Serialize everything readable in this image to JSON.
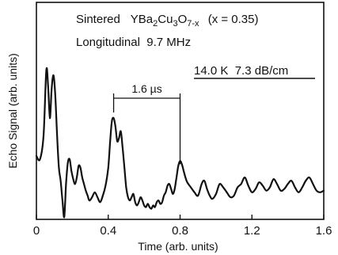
{
  "chart_data": {
    "type": "line",
    "xlabel": "Time (arb. units)",
    "ylabel": "Echo Signal (arb. units)",
    "xlim": [
      0,
      1.6
    ],
    "ylim": [
      0,
      1
    ],
    "x_ticks": [
      "0",
      "0.4",
      "0.8",
      "1.2",
      "1.6"
    ],
    "grid": false,
    "legend": "none",
    "annotations": {
      "sample_prefix": "Sintered",
      "sample_formula_main": "YBa",
      "sub_1": "2",
      "formula_mid_1": "Cu",
      "sub_2": "3",
      "formula_mid_2": "O",
      "sub_3": "7-x",
      "sample_condition": "(x = 0.35)",
      "mode_line": "Longitudinal  9.7 MHz",
      "conditions": "14.0 K  7.3 dB/cm",
      "interval_label": "1.6 µs",
      "interval_start_x": 0.43,
      "interval_end_x": 0.8
    },
    "series": [
      {
        "x": [
          0.0,
          0.02,
          0.04,
          0.055,
          0.065,
          0.075,
          0.085,
          0.095,
          0.105,
          0.115,
          0.125,
          0.135,
          0.145,
          0.155,
          0.165,
          0.175,
          0.185,
          0.195,
          0.205,
          0.215,
          0.225,
          0.235,
          0.245,
          0.255,
          0.265,
          0.275,
          0.285,
          0.295,
          0.31,
          0.325,
          0.34,
          0.355,
          0.37,
          0.385,
          0.4,
          0.41,
          0.42,
          0.43,
          0.44,
          0.45,
          0.46,
          0.47,
          0.48,
          0.49,
          0.5,
          0.51,
          0.52,
          0.53,
          0.54,
          0.55,
          0.56,
          0.57,
          0.58,
          0.59,
          0.6,
          0.61,
          0.62,
          0.63,
          0.64,
          0.65,
          0.66,
          0.67,
          0.68,
          0.69,
          0.7,
          0.71,
          0.72,
          0.73,
          0.74,
          0.75,
          0.76,
          0.77,
          0.78,
          0.79,
          0.8,
          0.81,
          0.82,
          0.83,
          0.84,
          0.86,
          0.88,
          0.9,
          0.92,
          0.935,
          0.95,
          0.965,
          0.98,
          1.0,
          1.02,
          1.04,
          1.06,
          1.08,
          1.1,
          1.12,
          1.14,
          1.16,
          1.18,
          1.2,
          1.22,
          1.24,
          1.26,
          1.28,
          1.3,
          1.32,
          1.34,
          1.36,
          1.38,
          1.4,
          1.42,
          1.44,
          1.46,
          1.48,
          1.5,
          1.52,
          1.54,
          1.56,
          1.58,
          1.6
        ],
        "values": [
          0.37,
          0.35,
          0.5,
          0.89,
          0.8,
          0.6,
          0.78,
          0.86,
          0.74,
          0.5,
          0.3,
          0.22,
          0.1,
          0.0,
          0.2,
          0.33,
          0.35,
          0.28,
          0.23,
          0.2,
          0.24,
          0.31,
          0.3,
          0.24,
          0.2,
          0.16,
          0.13,
          0.1,
          0.12,
          0.15,
          0.12,
          0.09,
          0.13,
          0.19,
          0.3,
          0.45,
          0.58,
          0.6,
          0.55,
          0.46,
          0.48,
          0.52,
          0.42,
          0.3,
          0.18,
          0.12,
          0.1,
          0.12,
          0.14,
          0.09,
          0.07,
          0.09,
          0.12,
          0.1,
          0.07,
          0.06,
          0.08,
          0.06,
          0.05,
          0.07,
          0.06,
          0.09,
          0.1,
          0.08,
          0.09,
          0.13,
          0.15,
          0.19,
          0.2,
          0.17,
          0.14,
          0.17,
          0.24,
          0.31,
          0.34,
          0.32,
          0.28,
          0.24,
          0.21,
          0.18,
          0.15,
          0.13,
          0.2,
          0.22,
          0.17,
          0.13,
          0.11,
          0.14,
          0.2,
          0.18,
          0.15,
          0.12,
          0.13,
          0.18,
          0.2,
          0.24,
          0.19,
          0.15,
          0.17,
          0.21,
          0.19,
          0.16,
          0.18,
          0.23,
          0.2,
          0.16,
          0.17,
          0.2,
          0.22,
          0.18,
          0.15,
          0.18,
          0.22,
          0.24,
          0.2,
          0.16,
          0.15,
          0.16
        ]
      }
    ]
  }
}
